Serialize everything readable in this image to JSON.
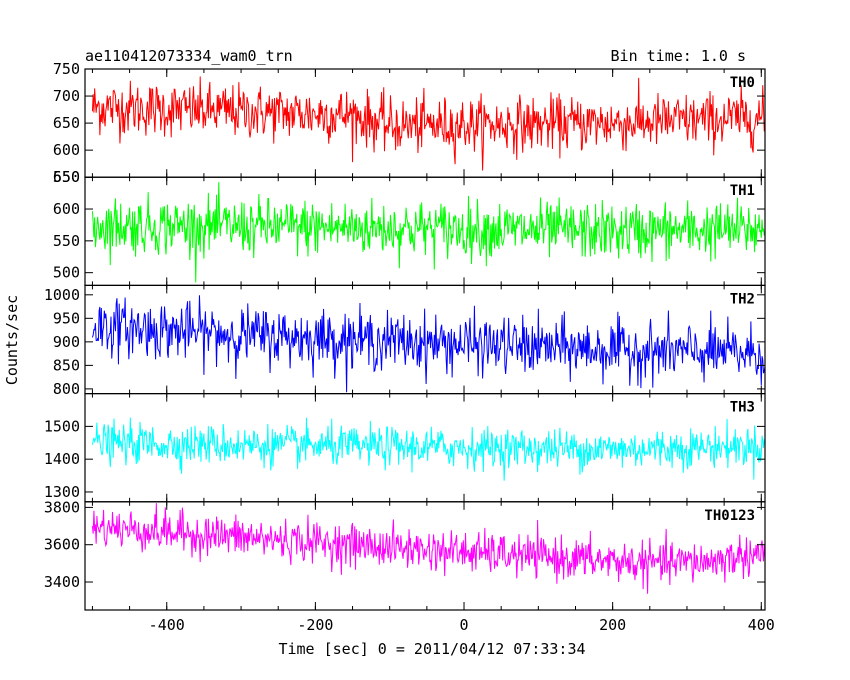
{
  "header": {
    "title": "ae110412073334_wam0_trn",
    "bin_time": "Bin time: 1.0 s"
  },
  "chart_data": {
    "type": "line",
    "xlabel": "Time [sec] 0 = 2011/04/12 07:33:34",
    "ylabel": "Counts/sec",
    "xlim": [
      -510,
      405
    ],
    "x_ticks": [
      -400,
      -200,
      0,
      200,
      400
    ],
    "x_step": 1.0,
    "panels": [
      {
        "name": "TH0",
        "color": "#ff0000",
        "ylim": [
          550,
          750
        ],
        "y_ticks": [
          550,
          600,
          650,
          700,
          750
        ],
        "mean_start": 680,
        "mean_end": 650,
        "noise_sigma": 25,
        "shape": [
          [
            -510,
            680
          ],
          [
            -150,
            665
          ],
          [
            -100,
            645
          ],
          [
            200,
            650
          ],
          [
            405,
            660
          ]
        ]
      },
      {
        "name": "TH1",
        "color": "#00ff00",
        "ylim": [
          480,
          650
        ],
        "y_ticks": [
          500,
          550,
          600,
          650
        ],
        "shape": [
          [
            -510,
            575
          ],
          [
            -100,
            570
          ],
          [
            200,
            565
          ],
          [
            405,
            568
          ]
        ],
        "noise_sigma": 22
      },
      {
        "name": "TH2",
        "color": "#0000ff",
        "ylim": [
          790,
          1020
        ],
        "y_ticks": [
          800,
          850,
          900,
          950,
          1000
        ],
        "shape": [
          [
            -510,
            935
          ],
          [
            -300,
            915
          ],
          [
            0,
            895
          ],
          [
            250,
            880
          ],
          [
            405,
            875
          ]
        ],
        "noise_sigma": 30
      },
      {
        "name": "TH3",
        "color": "#00ffff",
        "ylim": [
          1270,
          1600
        ],
        "y_ticks": [
          1300,
          1400,
          1500
        ],
        "shape": [
          [
            -510,
            1450
          ],
          [
            -200,
            1440
          ],
          [
            200,
            1430
          ],
          [
            405,
            1440
          ]
        ],
        "noise_sigma": 30
      },
      {
        "name": "TH0123",
        "color": "#ff00ff",
        "ylim": [
          3250,
          3830
        ],
        "y_ticks": [
          3400,
          3600,
          3800
        ],
        "shape": [
          [
            -510,
            3700
          ],
          [
            -300,
            3640
          ],
          [
            0,
            3560
          ],
          [
            250,
            3500
          ],
          [
            330,
            3510
          ],
          [
            405,
            3560
          ]
        ],
        "noise_sigma": 55
      }
    ]
  }
}
